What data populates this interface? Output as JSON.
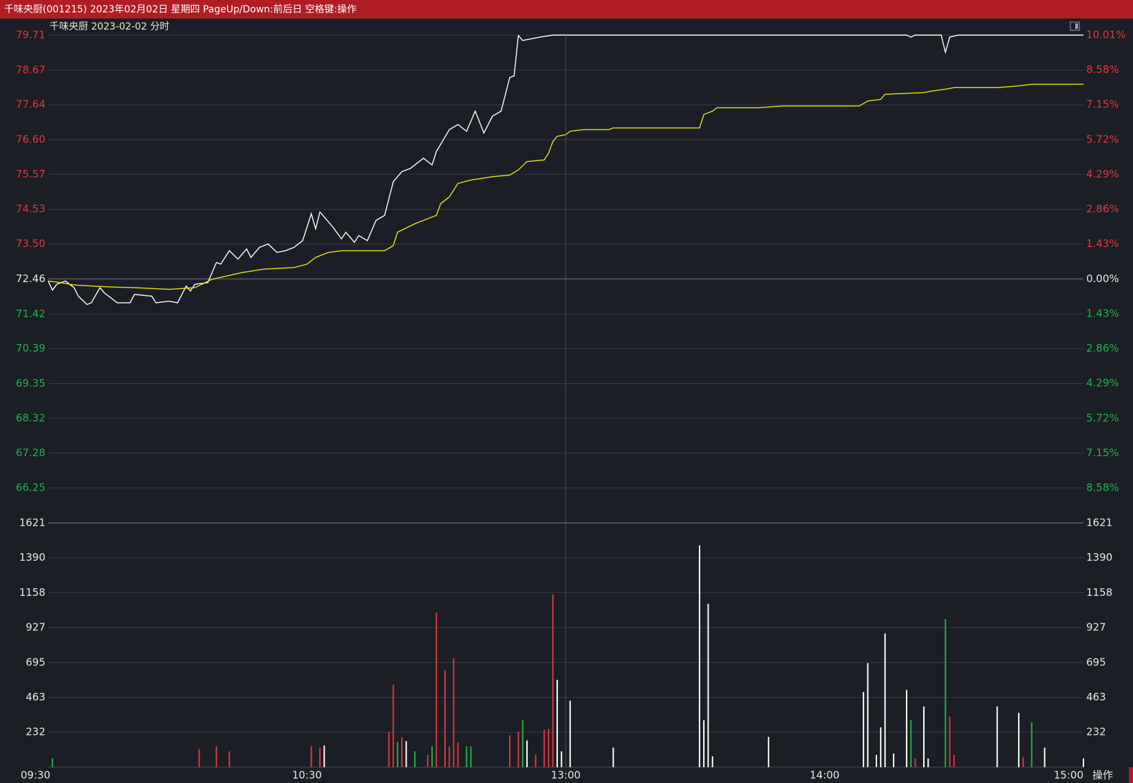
{
  "header": {
    "title": "千味央厨(001215) 2023年02月02日 星期四 PageUp/Down:前后日 空格键:操作"
  },
  "button": "操作",
  "chart_data": [
    {
      "type": "line",
      "title": "千味央厨  2023-02-02 分时",
      "xlim": [
        0,
        240
      ],
      "ylim": [
        66.25,
        79.71
      ],
      "yticks": [
        79.71,
        78.67,
        77.64,
        {
          "value": 76.6,
          "label": "76.60"
        },
        75.57,
        74.53,
        {
          "value": 73.5,
          "label": "73.50"
        },
        72.46,
        71.42,
        70.39,
        69.35,
        68.32,
        67.28,
        66.25
      ],
      "y2lim": [
        -8.58,
        10.01
      ],
      "y2ticks": [
        {
          "value": 10.01,
          "label": "10.01%"
        },
        {
          "value": 8.58,
          "label": "8.58%"
        },
        {
          "value": 7.15,
          "label": "7.15%"
        },
        {
          "value": 5.72,
          "label": "5.72%"
        },
        {
          "value": 4.29,
          "label": "4.29%"
        },
        {
          "value": 2.86,
          "label": "2.86%"
        },
        {
          "value": 1.43,
          "label": "1.43%"
        },
        {
          "value": 0,
          "label": "0.00%"
        },
        {
          "value": -1.43,
          "label": "1.43%"
        },
        {
          "value": -2.86,
          "label": "2.86%"
        },
        {
          "value": -4.29,
          "label": "4.29%"
        },
        {
          "value": -5.72,
          "label": "5.72%"
        },
        {
          "value": -7.15,
          "label": "7.15%"
        },
        {
          "value": -8.58,
          "label": "8.58%"
        }
      ],
      "grid": true,
      "series": [
        {
          "color": "#ffffff",
          "x": [
            0,
            1,
            2,
            4,
            6,
            7,
            9,
            10,
            12,
            13,
            15,
            16,
            19,
            20,
            24,
            25,
            28,
            30,
            32,
            33,
            34,
            37,
            39,
            40,
            42,
            44,
            46,
            47,
            49,
            51,
            53,
            55,
            57,
            59,
            61,
            62,
            63,
            66,
            68,
            69,
            71,
            72,
            74,
            76,
            78,
            80,
            82,
            84,
            87,
            89,
            90,
            93,
            95,
            97,
            99,
            101,
            103,
            105,
            107,
            108,
            109,
            110,
            114,
            117,
            199,
            200,
            201,
            207,
            208,
            209,
            211,
            240
          ],
          "values": [
            72.4,
            72.13,
            72.3,
            72.4,
            72.2,
            71.95,
            71.7,
            71.75,
            72.2,
            72.05,
            71.85,
            71.75,
            71.75,
            72.0,
            71.95,
            71.75,
            71.8,
            71.75,
            72.25,
            72.1,
            72.3,
            72.35,
            72.95,
            72.9,
            73.3,
            73.05,
            73.35,
            73.1,
            73.4,
            73.5,
            73.25,
            73.3,
            73.4,
            73.6,
            74.4,
            73.95,
            74.45,
            74.0,
            73.65,
            73.85,
            73.55,
            73.75,
            73.6,
            74.2,
            74.35,
            75.35,
            75.65,
            75.75,
            76.05,
            75.85,
            76.25,
            76.9,
            77.05,
            76.85,
            77.45,
            76.8,
            77.3,
            77.45,
            78.45,
            78.5,
            79.7,
            79.55,
            79.65,
            79.71,
            79.71,
            79.65,
            79.71,
            79.71,
            79.2,
            79.65,
            79.71,
            79.71
          ]
        },
        {
          "color": "#e6e619",
          "x": [
            0,
            3,
            6,
            10,
            15,
            20,
            28,
            34,
            38,
            45,
            50,
            57,
            60,
            62,
            65,
            68,
            78,
            80,
            81,
            85,
            88,
            90,
            91,
            93,
            95,
            98,
            103,
            107,
            109,
            111,
            115,
            116,
            117,
            118,
            120,
            121,
            124,
            130,
            131,
            151,
            152,
            154,
            155,
            165,
            170,
            188,
            190,
            193,
            194,
            203,
            205,
            208,
            210,
            220,
            225,
            228,
            240
          ],
          "values": [
            72.4,
            72.35,
            72.28,
            72.25,
            72.22,
            72.2,
            72.15,
            72.2,
            72.45,
            72.65,
            72.75,
            72.8,
            72.9,
            73.1,
            73.25,
            73.3,
            73.3,
            73.45,
            73.85,
            74.1,
            74.25,
            74.35,
            74.7,
            74.9,
            75.3,
            75.4,
            75.5,
            75.55,
            75.7,
            75.95,
            76.0,
            76.2,
            76.55,
            76.7,
            76.75,
            76.85,
            76.9,
            76.9,
            76.95,
            76.95,
            77.35,
            77.45,
            77.55,
            77.55,
            77.6,
            77.6,
            77.75,
            77.8,
            77.95,
            78.0,
            78.05,
            78.1,
            78.15,
            78.15,
            78.2,
            78.25,
            78.25
          ]
        }
      ]
    },
    {
      "type": "bar",
      "xlim": [
        0,
        240
      ],
      "xticks": [
        {
          "value": 0,
          "label": "09:30"
        },
        {
          "value": 60,
          "label": "10:30"
        },
        {
          "value": 120,
          "label": "13:00"
        },
        {
          "value": 180,
          "label": "14:00"
        },
        {
          "value": 240,
          "label": "15:00"
        }
      ],
      "ylim": [
        0,
        1621
      ],
      "yticks": [
        1621,
        1390,
        1158,
        927,
        695,
        463,
        232
      ],
      "grid": true,
      "series": [
        {
          "color": "#e0383e",
          "x": [
            35,
            39,
            42,
            61,
            63,
            79,
            80,
            82,
            88,
            90,
            92,
            93,
            94,
            95,
            107,
            109,
            113,
            115,
            116,
            117,
            201,
            209,
            210,
            226
          ],
          "values": [
            120,
            139,
            105,
            139,
            130,
            235,
            547,
            197,
            82,
            1026,
            643,
            139,
            724,
            163,
            211,
            235,
            82,
            249,
            254,
            1146,
            58,
            336,
            82,
            67
          ]
        },
        {
          "color": "#22b14c",
          "x": [
            1,
            81,
            85,
            89,
            97,
            98,
            110,
            200,
            208,
            228
          ],
          "values": [
            58,
            168,
            105,
            139,
            139,
            139,
            312,
            312,
            983,
            297
          ]
        },
        {
          "color": "#ffffff",
          "x": [
            64,
            83,
            111,
            118,
            119,
            121,
            131,
            151,
            152,
            153,
            154,
            167,
            189,
            190,
            192,
            193,
            194,
            196,
            199,
            203,
            204,
            220,
            225,
            231,
            240
          ],
          "values": [
            144,
            173,
            177,
            580,
            105,
            441,
            130,
            1472,
            312,
            1084,
            72,
            201,
            499,
            691,
            82,
            264,
            887,
            91,
            513,
            403,
            58,
            403,
            360,
            130,
            58
          ]
        }
      ]
    }
  ]
}
